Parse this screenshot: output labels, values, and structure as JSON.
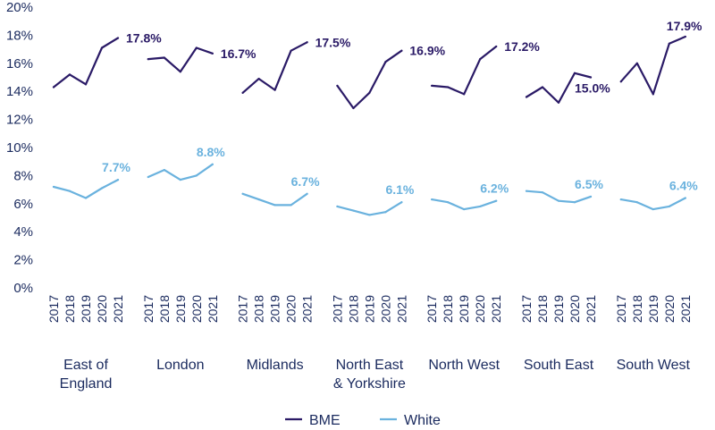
{
  "chart_data": {
    "type": "line",
    "ylim": [
      0,
      20
    ],
    "yticks": [
      "0%",
      "2%",
      "4%",
      "6%",
      "8%",
      "10%",
      "12%",
      "14%",
      "16%",
      "18%",
      "20%"
    ],
    "years": [
      "2017",
      "2018",
      "2019",
      "2020",
      "2021"
    ],
    "groups": [
      {
        "region": [
          "East of",
          "England"
        ],
        "BME": [
          14.3,
          15.2,
          14.5,
          17.1,
          17.8
        ],
        "White": [
          7.2,
          6.9,
          6.4,
          7.1,
          7.7
        ],
        "BME_label": "17.8%",
        "White_label": "7.7%"
      },
      {
        "region": [
          "London"
        ],
        "BME": [
          16.3,
          16.4,
          15.4,
          17.1,
          16.7
        ],
        "White": [
          7.9,
          8.4,
          7.7,
          8.0,
          8.8
        ],
        "BME_label": "16.7%",
        "White_label": "8.8%"
      },
      {
        "region": [
          "Midlands"
        ],
        "BME": [
          13.9,
          14.9,
          14.1,
          16.9,
          17.5
        ],
        "White": [
          6.7,
          6.3,
          5.9,
          5.9,
          6.7
        ],
        "BME_label": "17.5%",
        "White_label": "6.7%"
      },
      {
        "region": [
          "North East",
          "& Yorkshire"
        ],
        "BME": [
          14.4,
          12.8,
          13.9,
          16.1,
          16.9
        ],
        "White": [
          5.8,
          5.5,
          5.2,
          5.4,
          6.1
        ],
        "BME_label": "16.9%",
        "White_label": "6.1%"
      },
      {
        "region": [
          "North West"
        ],
        "BME": [
          14.4,
          14.3,
          13.8,
          16.3,
          17.2
        ],
        "White": [
          6.3,
          6.1,
          5.6,
          5.8,
          6.2
        ],
        "BME_label": "17.2%",
        "White_label": "6.2%"
      },
      {
        "region": [
          "South East"
        ],
        "BME": [
          13.6,
          14.3,
          13.2,
          15.3,
          15.0
        ],
        "White": [
          6.9,
          6.8,
          6.2,
          6.1,
          6.5
        ],
        "BME_label": "15.0%",
        "White_label": "6.5%"
      },
      {
        "region": [
          "South West"
        ],
        "BME": [
          14.7,
          16.0,
          13.8,
          17.4,
          17.9
        ],
        "White": [
          6.3,
          6.1,
          5.6,
          5.8,
          6.4
        ],
        "BME_label": "17.9%",
        "White_label": "6.4%"
      }
    ],
    "series": [
      {
        "name": "BME",
        "color": "#2a1a66"
      },
      {
        "name": "White",
        "color": "#6ab2de"
      }
    ],
    "legend_position": "bottom-center",
    "grid": false
  }
}
